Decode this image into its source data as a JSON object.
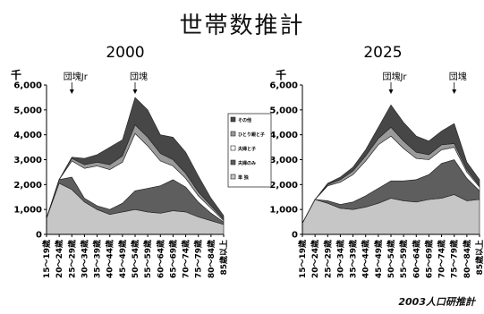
{
  "page_title": "世帯数推計",
  "source_note": "2003人口研推計",
  "legend": {
    "items": [
      {
        "label": "その他",
        "color": "#474747"
      },
      {
        "label": "ひとり親と子",
        "color": "#9a9a9a"
      },
      {
        "label": "夫婦と子",
        "color": "#ffffff"
      },
      {
        "label": "夫婦のみ",
        "color": "#5e5e5e"
      },
      {
        "label": "単 独",
        "color": "#c6c6c6"
      }
    ]
  },
  "chart_data": [
    {
      "type": "area",
      "title": "2000",
      "y_unit": "千",
      "ylim": [
        0,
        6000
      ],
      "yticks": [
        "0",
        "1,000",
        "2,000",
        "3,000",
        "4,000",
        "5,000",
        "6,000"
      ],
      "stacked": true,
      "categories": [
        "15～19歳",
        "20～24歳",
        "25～29歳",
        "30～34歳",
        "35～39歳",
        "40～44歳",
        "45～49歳",
        "50～54歳",
        "55～59歳",
        "60～64歳",
        "65～69歳",
        "70～74歳",
        "75～79歳",
        "80～84歳",
        "85歳以上"
      ],
      "annotations": [
        {
          "text": "団塊Jr",
          "category": "25～29歳"
        },
        {
          "text": "団塊",
          "category": "50～54歳"
        }
      ],
      "series": [
        {
          "name": "単 独",
          "values": [
            650,
            2050,
            1800,
            1300,
            1000,
            800,
            900,
            1000,
            900,
            850,
            950,
            900,
            700,
            550,
            400
          ]
        },
        {
          "name": "夫婦のみ",
          "values": [
            0,
            150,
            500,
            150,
            150,
            200,
            350,
            750,
            950,
            1100,
            1250,
            1000,
            600,
            300,
            100
          ]
        },
        {
          "name": "夫婦と子",
          "values": [
            0,
            0,
            650,
            1200,
            1600,
            1600,
            1650,
            2300,
            1700,
            1000,
            550,
            350,
            250,
            200,
            50
          ]
        },
        {
          "name": "ひとり親と子",
          "values": [
            0,
            0,
            100,
            150,
            150,
            200,
            250,
            350,
            350,
            300,
            250,
            200,
            150,
            100,
            50
          ]
        },
        {
          "name": "その他",
          "values": [
            0,
            0,
            50,
            250,
            300,
            700,
            650,
            1100,
            1100,
            750,
            900,
            850,
            650,
            300,
            150
          ]
        }
      ]
    },
    {
      "type": "area",
      "title": "2025",
      "y_unit": "千",
      "ylim": [
        0,
        6000
      ],
      "yticks": [
        "0",
        "1,000",
        "2,000",
        "3,000",
        "4,000",
        "5,000",
        "6,000"
      ],
      "stacked": true,
      "categories": [
        "15～19歳",
        "20～24歳",
        "25～29歳",
        "30～34歳",
        "35～39歳",
        "40～44歳",
        "45～49歳",
        "50～54歳",
        "55～59歳",
        "60～64歳",
        "65～69歳",
        "70～74歳",
        "75～79歳",
        "80～84歳",
        "85歳以上"
      ],
      "annotations": [
        {
          "text": "団塊Jr",
          "category": "50～54歳"
        },
        {
          "text": "団塊",
          "category": "75～79歳"
        }
      ],
      "series": [
        {
          "name": "単 独",
          "values": [
            450,
            1400,
            1250,
            1050,
            1000,
            1100,
            1250,
            1450,
            1350,
            1300,
            1400,
            1450,
            1600,
            1350,
            1400
          ]
        },
        {
          "name": "夫婦のみ",
          "values": [
            0,
            0,
            100,
            150,
            300,
            450,
            600,
            700,
            800,
            900,
            1000,
            1400,
            1400,
            900,
            350
          ]
        },
        {
          "name": "夫婦と子",
          "values": [
            0,
            0,
            600,
            900,
            1100,
            1400,
            1750,
            1800,
            1300,
            850,
            600,
            550,
            500,
            250,
            150
          ]
        },
        {
          "name": "ひとり親と子",
          "values": [
            0,
            0,
            50,
            100,
            150,
            200,
            250,
            350,
            300,
            250,
            200,
            200,
            150,
            100,
            50
          ]
        },
        {
          "name": "その他",
          "values": [
            0,
            0,
            50,
            100,
            150,
            250,
            450,
            900,
            750,
            650,
            550,
            550,
            800,
            300,
            250
          ]
        }
      ]
    }
  ]
}
